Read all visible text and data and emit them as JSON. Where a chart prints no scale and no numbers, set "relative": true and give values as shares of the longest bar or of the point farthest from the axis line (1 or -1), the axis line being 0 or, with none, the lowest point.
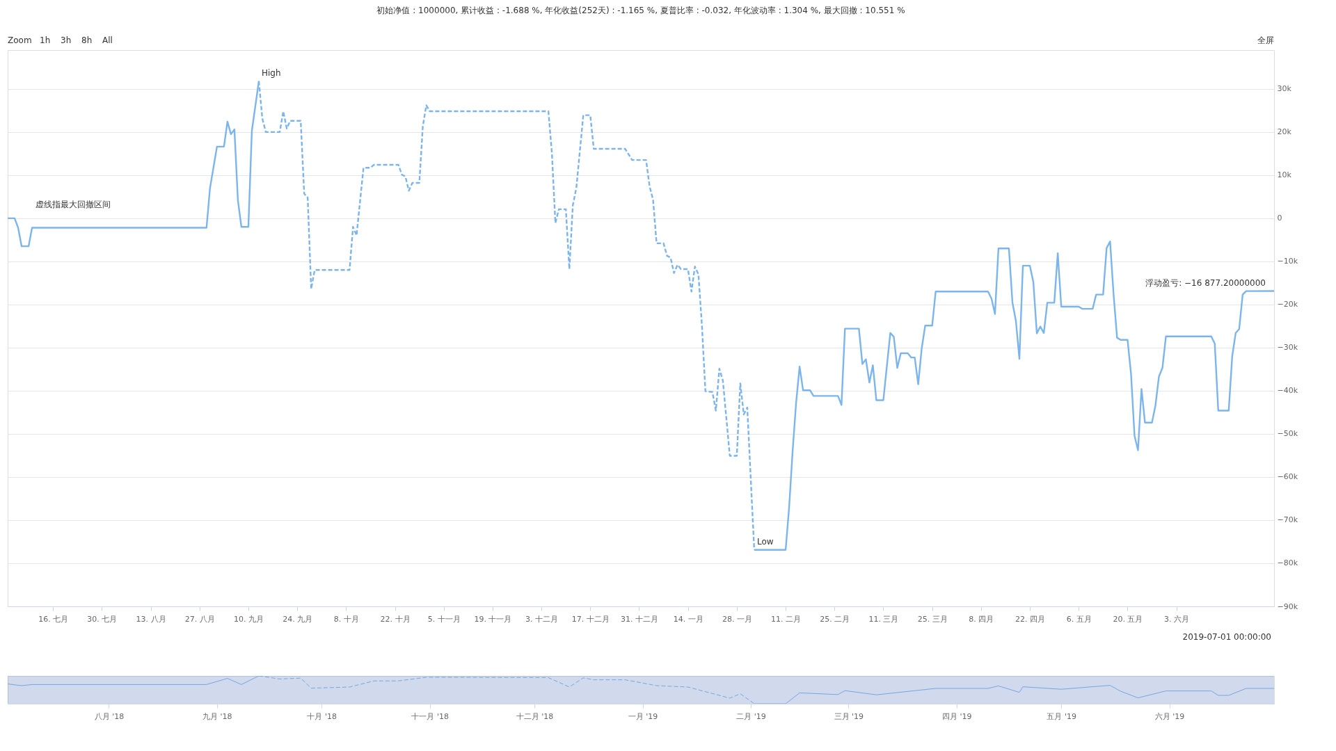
{
  "chart_data": [
    {
      "type": "line",
      "title": "初始净值 : 1000000, 累计收益 : -1.688 %, 年化收益(252天) : -1.165 %, 夏普比率 : -0.032, 年化波动率 : 1.304 %, 最大回撤 : 10.551 %",
      "xlim": [
        "2018-07-03",
        "2019-07-01"
      ],
      "xticks": [
        {
          "value": "2018-07-16",
          "label": "16. 七月"
        },
        {
          "value": "2018-07-30",
          "label": "30. 七月"
        },
        {
          "value": "2018-08-13",
          "label": "13. 八月"
        },
        {
          "value": "2018-08-27",
          "label": "27. 八月"
        },
        {
          "value": "2018-09-10",
          "label": "10. 九月"
        },
        {
          "value": "2018-09-24",
          "label": "24. 九月"
        },
        {
          "value": "2018-10-08",
          "label": "8. 十月"
        },
        {
          "value": "2018-10-22",
          "label": "22. 十月"
        },
        {
          "value": "2018-11-05",
          "label": "5. 十一月"
        },
        {
          "value": "2018-11-19",
          "label": "19. 十一月"
        },
        {
          "value": "2018-12-03",
          "label": "3. 十二月"
        },
        {
          "value": "2018-12-17",
          "label": "17. 十二月"
        },
        {
          "value": "2018-12-31",
          "label": "31. 十二月"
        },
        {
          "value": "2019-01-14",
          "label": "14. 一月"
        },
        {
          "value": "2019-01-28",
          "label": "28. 一月"
        },
        {
          "value": "2019-02-11",
          "label": "11. 二月"
        },
        {
          "value": "2019-02-25",
          "label": "25. 二月"
        },
        {
          "value": "2019-03-11",
          "label": "11. 三月"
        },
        {
          "value": "2019-03-25",
          "label": "25. 三月"
        },
        {
          "value": "2019-04-08",
          "label": "8. 四月"
        },
        {
          "value": "2019-04-22",
          "label": "22. 四月"
        },
        {
          "value": "2019-05-06",
          "label": "6. 五月"
        },
        {
          "value": "2019-05-20",
          "label": "20. 五月"
        },
        {
          "value": "2019-06-03",
          "label": "3. 六月"
        }
      ],
      "ylim": [
        -90000,
        39000
      ],
      "yticks": [
        {
          "value": -90000,
          "label": "−90k"
        },
        {
          "value": -80000,
          "label": "−80k"
        },
        {
          "value": -70000,
          "label": "−70k"
        },
        {
          "value": -60000,
          "label": "−60k"
        },
        {
          "value": -50000,
          "label": "−50k"
        },
        {
          "value": -40000,
          "label": "−40k"
        },
        {
          "value": -30000,
          "label": "−30k"
        },
        {
          "value": -20000,
          "label": "−20k"
        },
        {
          "value": -10000,
          "label": "−10k"
        },
        0,
        {
          "value": 10000,
          "label": "10k"
        },
        {
          "value": 20000,
          "label": "20k"
        },
        {
          "value": 30000,
          "label": "30k"
        }
      ],
      "grid": "y",
      "series": [
        {
          "color": "#7cb5ec",
          "line_style": "solid",
          "x": [
            "2018-07-03",
            "2018-07-05",
            "2018-07-06",
            "2018-07-07",
            "2018-07-09",
            "2018-07-10",
            "2018-08-29",
            "2018-08-30",
            "2018-09-01",
            "2018-09-03",
            "2018-09-04",
            "2018-09-05",
            "2018-09-06",
            "2018-09-07",
            "2018-09-08",
            "2018-09-10",
            "2018-09-11",
            "2018-09-13"
          ],
          "values": [
            0,
            0,
            -2200,
            -6500,
            -6500,
            -2200,
            -2200,
            7000,
            16600,
            16600,
            22400,
            19500,
            20600,
            4100,
            -2000,
            -2000,
            20300,
            31800
          ]
        },
        {
          "color": "#7cb5ec",
          "line_style": "dashed",
          "x": [
            "2018-09-13",
            "2018-09-14",
            "2018-09-15",
            "2018-09-19",
            "2018-09-20",
            "2018-09-21",
            "2018-09-22",
            "2018-09-25",
            "2018-09-26",
            "2018-09-27",
            "2018-09-28",
            "2018-09-29",
            "2018-10-09",
            "2018-10-10",
            "2018-10-11",
            "2018-10-13",
            "2018-10-15",
            "2018-10-16",
            "2018-10-23",
            "2018-10-24",
            "2018-10-25",
            "2018-10-26",
            "2018-10-27",
            "2018-10-29",
            "2018-10-30",
            "2018-10-31",
            "2018-11-01",
            "2018-12-05",
            "2018-12-06",
            "2018-12-07",
            "2018-12-08",
            "2018-12-10",
            "2018-12-11",
            "2018-12-12",
            "2018-12-13",
            "2018-12-15",
            "2018-12-17",
            "2018-12-18",
            "2018-12-27",
            "2018-12-29",
            "2019-01-02",
            "2019-01-03",
            "2019-01-04",
            "2019-01-05",
            "2019-01-07",
            "2019-01-08",
            "2019-01-09",
            "2019-01-10",
            "2019-01-11",
            "2019-01-12",
            "2019-01-14",
            "2019-01-15",
            "2019-01-16",
            "2019-01-17",
            "2019-01-18",
            "2019-01-19",
            "2019-01-21",
            "2019-01-22",
            "2019-01-23",
            "2019-01-24",
            "2019-01-26",
            "2019-01-28",
            "2019-01-29",
            "2019-01-30",
            "2019-01-31",
            "2019-02-02"
          ],
          "values": [
            31800,
            23100,
            20000,
            20000,
            24800,
            20800,
            22600,
            22600,
            5700,
            4800,
            -16400,
            -12000,
            -12000,
            -2000,
            -4000,
            11700,
            11700,
            12400,
            12400,
            10100,
            9700,
            6400,
            8200,
            8200,
            21300,
            26200,
            24800,
            24800,
            15100,
            -1100,
            2100,
            2100,
            -11800,
            3000,
            7000,
            23900,
            23900,
            16100,
            16100,
            13500,
            13500,
            7400,
            4300,
            -5800,
            -5800,
            -8700,
            -9100,
            -12700,
            -10800,
            -11800,
            -11800,
            -17000,
            -11200,
            -13000,
            -24800,
            -40100,
            -40300,
            -44600,
            -34900,
            -37600,
            -55100,
            -55100,
            -38300,
            -45500,
            -43900,
            -76900
          ]
        },
        {
          "color": "#7cb5ec",
          "line_style": "solid",
          "x": [
            "2019-02-02",
            "2019-02-11",
            "2019-02-12",
            "2019-02-13",
            "2019-02-14",
            "2019-02-15",
            "2019-02-16",
            "2019-02-18",
            "2019-02-19",
            "2019-02-26",
            "2019-02-27",
            "2019-02-28",
            "2019-03-04",
            "2019-03-05",
            "2019-03-06",
            "2019-03-07",
            "2019-03-08",
            "2019-03-09",
            "2019-03-11",
            "2019-03-13",
            "2019-03-14",
            "2019-03-15",
            "2019-03-16",
            "2019-03-18",
            "2019-03-19",
            "2019-03-20",
            "2019-03-21",
            "2019-03-22",
            "2019-03-23",
            "2019-03-25",
            "2019-03-26",
            "2019-04-10",
            "2019-04-11",
            "2019-04-12",
            "2019-04-13",
            "2019-04-16",
            "2019-04-17",
            "2019-04-18",
            "2019-04-19",
            "2019-04-20",
            "2019-04-22",
            "2019-04-23",
            "2019-04-24",
            "2019-04-25",
            "2019-04-26",
            "2019-04-27",
            "2019-04-29",
            "2019-04-30",
            "2019-05-01",
            "2019-05-06",
            "2019-05-07",
            "2019-05-10",
            "2019-05-11",
            "2019-05-13",
            "2019-05-14",
            "2019-05-15",
            "2019-05-16",
            "2019-05-17",
            "2019-05-18",
            "2019-05-20",
            "2019-05-21",
            "2019-05-22",
            "2019-05-23",
            "2019-05-24",
            "2019-05-25",
            "2019-05-27",
            "2019-05-28",
            "2019-05-29",
            "2019-05-30",
            "2019-05-31",
            "2019-06-13",
            "2019-06-14",
            "2019-06-15",
            "2019-06-18",
            "2019-06-19",
            "2019-06-20",
            "2019-06-21",
            "2019-06-22",
            "2019-06-23",
            "2019-07-01"
          ],
          "values": [
            -76900,
            -76900,
            -67000,
            -54000,
            -42800,
            -34400,
            -39900,
            -39900,
            -41200,
            -41200,
            -43300,
            -25600,
            -25600,
            -33800,
            -32700,
            -38100,
            -34100,
            -42200,
            -42200,
            -26600,
            -27500,
            -34700,
            -31300,
            -31300,
            -32300,
            -32300,
            -38500,
            -30200,
            -24900,
            -24900,
            -17000,
            -17000,
            -18600,
            -22200,
            -7000,
            -7000,
            -19500,
            -23800,
            -32600,
            -11000,
            -11000,
            -14800,
            -26700,
            -25100,
            -26600,
            -19600,
            -19600,
            -8100,
            -20500,
            -20500,
            -21000,
            -21000,
            -17700,
            -17700,
            -6900,
            -5400,
            -17700,
            -27700,
            -28200,
            -28200,
            -36100,
            -50400,
            -53800,
            -39600,
            -47400,
            -47400,
            -43400,
            -36700,
            -34700,
            -27400,
            -27400,
            -29100,
            -44600,
            -44600,
            -32000,
            -26600,
            -25700,
            -17700,
            -16900,
            -16877.2
          ]
        }
      ],
      "annotations": [
        "虚线指最大回撤区间",
        "2019-07-01 00:00:00",
        {
          "text": "High",
          "x": "2018-09-13",
          "y": 31800
        },
        {
          "text": "Low",
          "x": "2019-02-02",
          "y": -76900
        },
        {
          "text": "浮动盈亏: −16 877.20000000",
          "x": "2019-07-01",
          "y": -16877.2
        },
        "Zoom",
        "1h",
        "3h",
        "8h",
        "All",
        "全屏"
      ]
    },
    {
      "type": "line",
      "xlim": [
        "2018-07-03",
        "2019-07-01"
      ],
      "xticks": [
        {
          "value": "2018-08-01",
          "label": "八月 '18"
        },
        {
          "value": "2018-09-01",
          "label": "九月 '18"
        },
        {
          "value": "2018-10-01",
          "label": "十月 '18"
        },
        {
          "value": "2018-11-01",
          "label": "十一月 '18"
        },
        {
          "value": "2018-12-01",
          "label": "十二月 '18"
        },
        {
          "value": "2019-01-01",
          "label": "一月 '19"
        },
        {
          "value": "2019-02-01",
          "label": "二月 '19"
        },
        {
          "value": "2019-03-01",
          "label": "三月 '19"
        },
        {
          "value": "2019-04-01",
          "label": "四月 '19"
        },
        {
          "value": "2019-05-01",
          "label": "五月 '19"
        },
        {
          "value": "2019-06-01",
          "label": "六月 '19"
        }
      ],
      "relative": true,
      "tick_labels": "x",
      "bands": [
        {
          "axis": "x",
          "from": "2018-07-03",
          "to": "2019-07-01",
          "color": "#6685c2"
        }
      ],
      "series": [
        {
          "color": "#7cb5ec",
          "line_style": "solid",
          "x": [
            "2018-07-03",
            "2018-07-07",
            "2018-07-10",
            "2018-08-29",
            "2018-09-04",
            "2018-09-08",
            "2018-09-13"
          ],
          "values": [
            0.71,
            0.65,
            0.69,
            0.69,
            0.91,
            0.69,
            1
          ]
        },
        {
          "color": "#7cb5ec",
          "line_style": "dashed",
          "x": [
            "2018-09-13",
            "2018-09-19",
            "2018-09-25",
            "2018-09-28",
            "2018-10-09",
            "2018-10-16",
            "2018-10-23",
            "2018-10-31",
            "2018-12-05",
            "2018-12-11",
            "2018-12-15",
            "2018-12-18",
            "2018-12-27",
            "2019-01-05",
            "2019-01-14",
            "2019-01-26",
            "2019-01-29",
            "2019-02-02"
          ],
          "values": [
            1,
            0.89,
            0.92,
            0.56,
            0.6,
            0.82,
            0.82,
            0.95,
            0.94,
            0.6,
            0.93,
            0.86,
            0.86,
            0.65,
            0.6,
            0.2,
            0.36,
            0
          ]
        },
        {
          "color": "#7cb5ec",
          "line_style": "solid",
          "x": [
            "2019-02-02",
            "2019-02-11",
            "2019-02-15",
            "2019-02-26",
            "2019-02-28",
            "2019-03-09",
            "2019-03-26",
            "2019-04-10",
            "2019-04-13",
            "2019-04-19",
            "2019-04-20",
            "2019-05-01",
            "2019-05-15",
            "2019-05-18",
            "2019-05-23",
            "2019-05-31",
            "2019-06-13",
            "2019-06-15",
            "2019-06-18",
            "2019-06-23",
            "2019-07-01"
          ],
          "values": [
            0,
            0,
            0.39,
            0.33,
            0.47,
            0.32,
            0.55,
            0.55,
            0.64,
            0.41,
            0.61,
            0.52,
            0.66,
            0.45,
            0.21,
            0.46,
            0.46,
            0.3,
            0.3,
            0.55,
            0.55
          ]
        }
      ]
    }
  ]
}
